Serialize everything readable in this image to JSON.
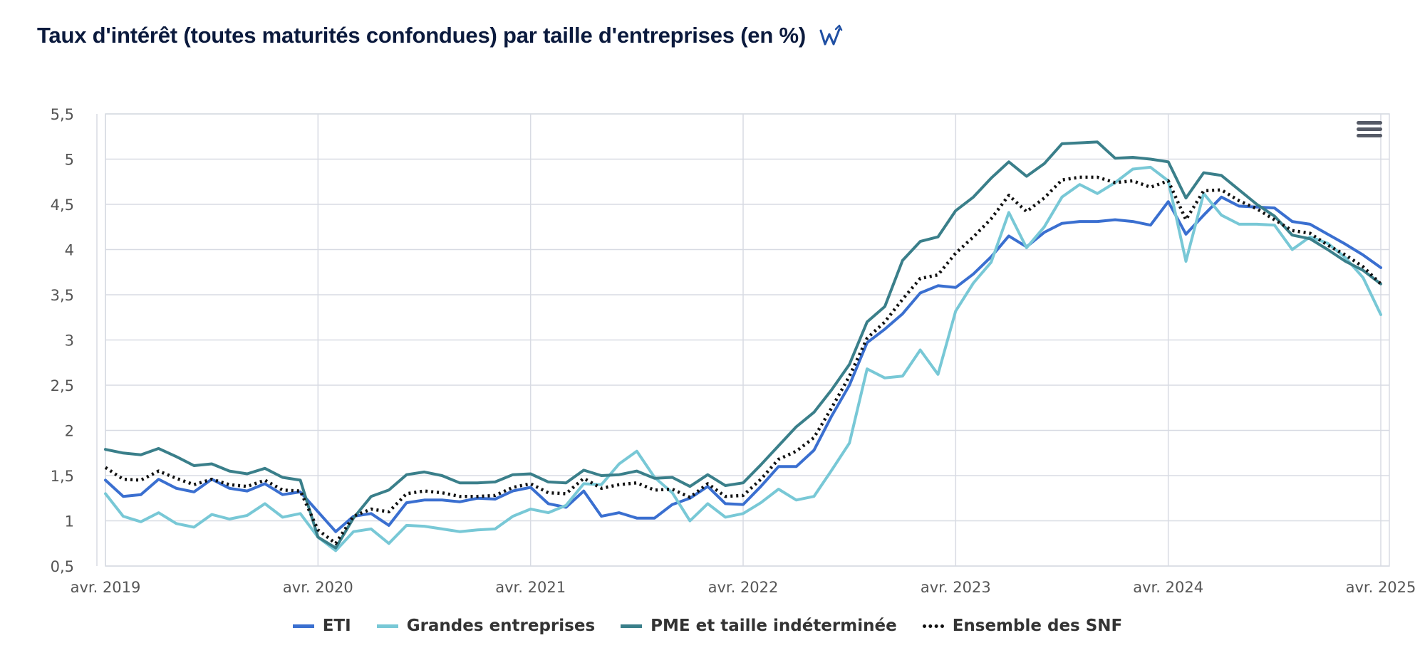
{
  "header": {
    "title": "Taux d'intérêt (toutes maturités confondues) par taille d'entreprises (en %)",
    "logo_icon": "w-arrow-logo-icon"
  },
  "menu": {
    "icon": "hamburger-menu-icon"
  },
  "colors": {
    "eti": "#3a6fd0",
    "ge": "#78c8d6",
    "pme": "#3a7f8a",
    "snf": "#111111",
    "grid": "#d8dbe3",
    "axis_text": "#555555"
  },
  "chart_data": {
    "type": "line",
    "title": "Taux d'intérêt (toutes maturités confondues) par taille d'entreprises (en %)",
    "xlabel": "",
    "ylabel": "",
    "ylim": [
      0.5,
      5.5
    ],
    "yticks": [
      "0,5",
      "1",
      "1,5",
      "2",
      "2,5",
      "3",
      "3,5",
      "4",
      "4,5",
      "5",
      "5,5"
    ],
    "x_ticks": [
      "avr. 2019",
      "avr. 2020",
      "avr. 2021",
      "avr. 2022",
      "avr. 2023",
      "avr. 2024",
      "avr. 2025"
    ],
    "x_start": "avr. 2019",
    "x_end": "avr. 2025",
    "grid": true,
    "legend_position": "bottom-center",
    "series": [
      {
        "name": "ETI",
        "style": "solid",
        "values": [
          1.45,
          1.27,
          1.29,
          1.46,
          1.36,
          1.32,
          1.46,
          1.36,
          1.33,
          1.41,
          1.29,
          1.32,
          1.1,
          0.88,
          1.05,
          1.08,
          0.95,
          1.2,
          1.23,
          1.23,
          1.21,
          1.25,
          1.24,
          1.33,
          1.37,
          1.19,
          1.15,
          1.33,
          1.05,
          1.09,
          1.03,
          1.03,
          1.18,
          1.25,
          1.38,
          1.19,
          1.18,
          1.38,
          1.6,
          1.6,
          1.78,
          2.16,
          2.5,
          2.97,
          3.12,
          3.29,
          3.52,
          3.6,
          3.58,
          3.73,
          3.92,
          4.15,
          4.03,
          4.19,
          4.29,
          4.31,
          4.31,
          4.33,
          4.31,
          4.27,
          4.53,
          4.17,
          4.38,
          4.58,
          4.48,
          4.47,
          4.46,
          4.31,
          4.28,
          4.17,
          4.06,
          3.94,
          3.8
        ]
      },
      {
        "name": "Grandes entreprises",
        "style": "solid",
        "values": [
          1.3,
          1.05,
          0.99,
          1.09,
          0.97,
          0.93,
          1.07,
          1.02,
          1.06,
          1.19,
          1.04,
          1.08,
          0.82,
          0.67,
          0.88,
          0.91,
          0.75,
          0.95,
          0.94,
          0.91,
          0.88,
          0.9,
          0.91,
          1.05,
          1.13,
          1.09,
          1.17,
          1.41,
          1.4,
          1.63,
          1.77,
          1.48,
          1.31,
          1.0,
          1.19,
          1.04,
          1.08,
          1.2,
          1.35,
          1.23,
          1.27,
          1.56,
          1.86,
          2.68,
          2.58,
          2.6,
          2.89,
          2.62,
          3.32,
          3.63,
          3.86,
          4.41,
          4.02,
          4.25,
          4.58,
          4.72,
          4.62,
          4.74,
          4.89,
          4.91,
          4.76,
          3.87,
          4.62,
          4.38,
          4.28,
          4.28,
          4.27,
          4.0,
          4.14,
          4.07,
          3.91,
          3.69,
          3.28
        ]
      },
      {
        "name": "PME et taille indéterminée",
        "style": "solid",
        "values": [
          1.79,
          1.75,
          1.73,
          1.8,
          1.71,
          1.61,
          1.63,
          1.55,
          1.52,
          1.58,
          1.48,
          1.45,
          0.82,
          0.7,
          1.03,
          1.27,
          1.34,
          1.51,
          1.54,
          1.5,
          1.42,
          1.42,
          1.43,
          1.51,
          1.52,
          1.43,
          1.42,
          1.56,
          1.5,
          1.51,
          1.55,
          1.47,
          1.48,
          1.38,
          1.51,
          1.39,
          1.42,
          1.62,
          1.83,
          2.04,
          2.2,
          2.45,
          2.73,
          3.2,
          3.37,
          3.88,
          4.09,
          4.14,
          4.43,
          4.58,
          4.79,
          4.97,
          4.81,
          4.95,
          5.17,
          5.18,
          5.19,
          5.01,
          5.02,
          5.0,
          4.97,
          4.57,
          4.85,
          4.82,
          4.66,
          4.5,
          4.37,
          4.16,
          4.12,
          4.0,
          3.87,
          3.77,
          3.62
        ]
      },
      {
        "name": "Ensemble des SNF",
        "style": "dotted",
        "values": [
          1.59,
          1.46,
          1.45,
          1.55,
          1.47,
          1.4,
          1.46,
          1.4,
          1.38,
          1.45,
          1.34,
          1.33,
          0.9,
          0.75,
          1.05,
          1.13,
          1.1,
          1.3,
          1.33,
          1.31,
          1.27,
          1.27,
          1.28,
          1.37,
          1.41,
          1.31,
          1.3,
          1.47,
          1.36,
          1.4,
          1.42,
          1.34,
          1.35,
          1.26,
          1.41,
          1.27,
          1.28,
          1.46,
          1.68,
          1.77,
          1.92,
          2.25,
          2.6,
          3.02,
          3.2,
          3.45,
          3.68,
          3.72,
          3.96,
          4.14,
          4.34,
          4.6,
          4.42,
          4.57,
          4.77,
          4.8,
          4.8,
          4.74,
          4.76,
          4.69,
          4.76,
          4.33,
          4.65,
          4.66,
          4.54,
          4.45,
          4.33,
          4.21,
          4.18,
          4.05,
          3.94,
          3.81,
          3.62
        ]
      }
    ]
  }
}
